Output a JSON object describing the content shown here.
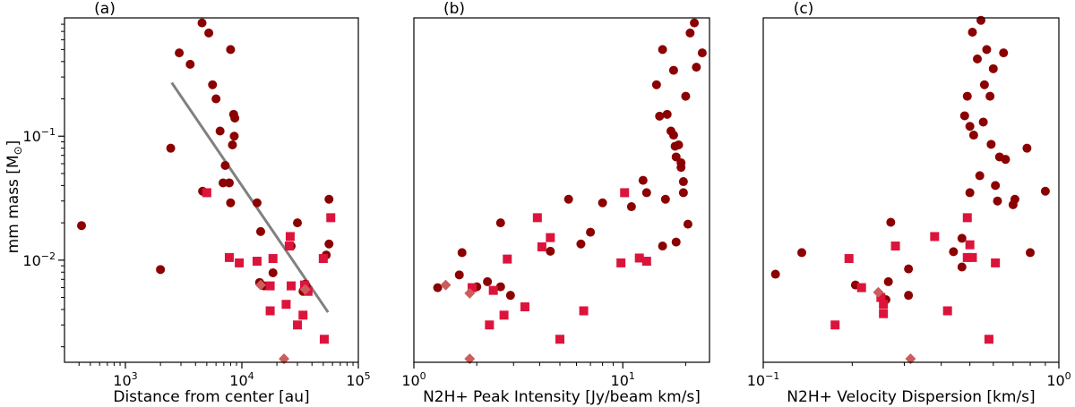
{
  "colors": {
    "dark_series": "#8b0000",
    "square_series": "#dc143c",
    "diamond_series": "#cd5c5c",
    "fit_line": "#808080"
  },
  "shared": {
    "ylabel": "mm mass [M",
    "ylabel_sub": "⊙",
    "ylabel_close": "]",
    "ylim": [
      0.0015,
      0.9
    ]
  },
  "chart_data": [
    {
      "type": "scatter",
      "panel_label": "(a)",
      "xlabel": "Distance from center [au]",
      "xscale": "log",
      "yscale": "log",
      "xlim": [
        300,
        100000
      ],
      "ylim": [
        0.0015,
        0.9
      ],
      "x_ticks": [
        {
          "value": 1000,
          "base": "10",
          "exp": "3"
        },
        {
          "value": 10000,
          "base": "10",
          "exp": "4"
        },
        {
          "value": 100000,
          "base": "10",
          "exp": "5"
        }
      ],
      "y_ticks": [
        {
          "value": 0.01,
          "base": "10",
          "exp": "−2"
        },
        {
          "value": 0.1,
          "base": "10",
          "exp": "−1"
        }
      ],
      "series": [
        {
          "name": "dark-circles",
          "marker": "circle",
          "color": "#8b0000",
          "points": [
            [
              420,
              0.019
            ],
            [
              2000,
              0.0084
            ],
            [
              2450,
              0.08
            ],
            [
              2900,
              0.47
            ],
            [
              3600,
              0.38
            ],
            [
              4550,
              0.82
            ],
            [
              5200,
              0.68
            ],
            [
              4600,
              0.036
            ],
            [
              5600,
              0.26
            ],
            [
              6000,
              0.2
            ],
            [
              6500,
              0.11
            ],
            [
              6900,
              0.042
            ],
            [
              7200,
              0.058
            ],
            [
              7800,
              0.042
            ],
            [
              8000,
              0.029
            ],
            [
              8000,
              0.5
            ],
            [
              8300,
              0.085
            ],
            [
              8500,
              0.15
            ],
            [
              8600,
              0.1
            ],
            [
              8700,
              0.14
            ],
            [
              13500,
              0.029
            ],
            [
              14200,
              0.0066
            ],
            [
              14500,
              0.017
            ],
            [
              15500,
              0.0062
            ],
            [
              18500,
              0.0079
            ],
            [
              26500,
              0.013
            ],
            [
              30000,
              0.02
            ],
            [
              33500,
              0.0056
            ],
            [
              35000,
              0.0064
            ],
            [
              36000,
              0.006
            ],
            [
              53000,
              0.011
            ],
            [
              56000,
              0.0135
            ],
            [
              56000,
              0.031
            ]
          ]
        },
        {
          "name": "red-squares",
          "marker": "square",
          "color": "#dc143c",
          "points": [
            [
              5000,
              0.035
            ],
            [
              7800,
              0.0105
            ],
            [
              9500,
              0.0095
            ],
            [
              13500,
              0.0098
            ],
            [
              17500,
              0.0062
            ],
            [
              17500,
              0.0039
            ],
            [
              18500,
              0.0103
            ],
            [
              24000,
              0.0044
            ],
            [
              25500,
              0.013
            ],
            [
              26000,
              0.0155
            ],
            [
              26500,
              0.0062
            ],
            [
              30000,
              0.003
            ],
            [
              33500,
              0.0036
            ],
            [
              34500,
              0.0063
            ],
            [
              37000,
              0.0056
            ],
            [
              50000,
              0.0103
            ],
            [
              51000,
              0.0023
            ],
            [
              58000,
              0.022
            ]
          ]
        },
        {
          "name": "diamonds",
          "marker": "diamond",
          "color": "#cd5c5c",
          "points": [
            [
              14500,
              0.0063
            ],
            [
              23000,
              0.0016
            ],
            [
              35000,
              0.0058
            ]
          ]
        }
      ],
      "fit_line": {
        "x": [
          2500,
          55000
        ],
        "y": [
          0.27,
          0.0038
        ]
      }
    },
    {
      "type": "scatter",
      "panel_label": "(b)",
      "xlabel": "N2H+ Peak Intensity [Jy/beam km/s]",
      "xscale": "log",
      "yscale": "log",
      "xlim": [
        1,
        26
      ],
      "ylim": [
        0.0015,
        0.9
      ],
      "x_ticks": [
        {
          "value": 1,
          "base": "10",
          "exp": "0"
        },
        {
          "value": 10,
          "base": "10",
          "exp": "1"
        }
      ],
      "y_ticks": [],
      "series": [
        {
          "name": "dark-circles",
          "marker": "circle",
          "color": "#8b0000",
          "points": [
            [
              1.3,
              0.006
            ],
            [
              1.65,
              0.0076
            ],
            [
              1.7,
              0.0115
            ],
            [
              2.0,
              0.0061
            ],
            [
              2.25,
              0.0067
            ],
            [
              2.6,
              0.02
            ],
            [
              2.6,
              0.0061
            ],
            [
              2.9,
              0.0052
            ],
            [
              4.5,
              0.0118
            ],
            [
              5.5,
              0.031
            ],
            [
              6.3,
              0.0135
            ],
            [
              7.0,
              0.0168
            ],
            [
              8.0,
              0.029
            ],
            [
              11.0,
              0.027
            ],
            [
              12.5,
              0.044
            ],
            [
              13.0,
              0.035
            ],
            [
              14.5,
              0.26
            ],
            [
              15.0,
              0.145
            ],
            [
              15.5,
              0.013
            ],
            [
              15.5,
              0.5
            ],
            [
              16.0,
              0.031
            ],
            [
              16.3,
              0.15
            ],
            [
              17.0,
              0.11
            ],
            [
              17.5,
              0.34
            ],
            [
              17.5,
              0.102
            ],
            [
              17.8,
              0.083
            ],
            [
              18.0,
              0.068
            ],
            [
              18.0,
              0.014
            ],
            [
              18.5,
              0.085
            ],
            [
              19.0,
              0.061
            ],
            [
              19.0,
              0.056
            ],
            [
              19.5,
              0.035
            ],
            [
              19.5,
              0.043
            ],
            [
              20.0,
              0.21
            ],
            [
              20.5,
              0.0195
            ],
            [
              21.0,
              0.68
            ],
            [
              22.0,
              0.82
            ],
            [
              22.5,
              0.36
            ],
            [
              24.0,
              0.47
            ]
          ]
        },
        {
          "name": "red-squares",
          "marker": "square",
          "color": "#dc143c",
          "points": [
            [
              1.9,
              0.006
            ],
            [
              2.3,
              0.003
            ],
            [
              2.4,
              0.0057
            ],
            [
              2.7,
              0.0036
            ],
            [
              2.8,
              0.0102
            ],
            [
              3.4,
              0.0042
            ],
            [
              3.9,
              0.022
            ],
            [
              4.1,
              0.0128
            ],
            [
              4.5,
              0.0152
            ],
            [
              5.0,
              0.0023
            ],
            [
              6.5,
              0.0039
            ],
            [
              9.8,
              0.0095
            ],
            [
              10.2,
              0.035
            ],
            [
              12.0,
              0.0104
            ],
            [
              13.0,
              0.0098
            ]
          ]
        },
        {
          "name": "diamonds",
          "marker": "diamond",
          "color": "#cd5c5c",
          "points": [
            [
              1.42,
              0.0063
            ],
            [
              1.85,
              0.0054
            ],
            [
              1.85,
              0.0016
            ]
          ]
        }
      ]
    },
    {
      "type": "scatter",
      "panel_label": "(c)",
      "xlabel": "N2H+ Velocity Dispersion [km/s]",
      "xscale": "log",
      "yscale": "log",
      "xlim": [
        0.1,
        1.0
      ],
      "ylim": [
        0.0015,
        0.9
      ],
      "x_ticks": [
        {
          "value": 0.1,
          "base": "10",
          "exp": "−1"
        },
        {
          "value": 1.0,
          "base": "10",
          "exp": "0"
        }
      ],
      "y_ticks": [],
      "series": [
        {
          "name": "dark-circles",
          "marker": "circle",
          "color": "#8b0000",
          "points": [
            [
              0.11,
              0.0077
            ],
            [
              0.135,
              0.0115
            ],
            [
              0.205,
              0.0063
            ],
            [
              0.26,
              0.0048
            ],
            [
              0.265,
              0.0067
            ],
            [
              0.27,
              0.0202
            ],
            [
              0.31,
              0.0085
            ],
            [
              0.31,
              0.0052
            ],
            [
              0.44,
              0.0117
            ],
            [
              0.47,
              0.015
            ],
            [
              0.47,
              0.0088
            ],
            [
              0.48,
              0.146
            ],
            [
              0.49,
              0.21
            ],
            [
              0.5,
              0.12
            ],
            [
              0.5,
              0.035
            ],
            [
              0.51,
              0.69
            ],
            [
              0.515,
              0.102
            ],
            [
              0.53,
              0.42
            ],
            [
              0.54,
              0.048
            ],
            [
              0.545,
              0.86
            ],
            [
              0.555,
              0.13
            ],
            [
              0.56,
              0.26
            ],
            [
              0.57,
              0.5
            ],
            [
              0.585,
              0.21
            ],
            [
              0.59,
              0.086
            ],
            [
              0.6,
              0.35
            ],
            [
              0.61,
              0.04
            ],
            [
              0.62,
              0.03
            ],
            [
              0.63,
              0.068
            ],
            [
              0.65,
              0.47
            ],
            [
              0.66,
              0.065
            ],
            [
              0.7,
              0.028
            ],
            [
              0.71,
              0.031
            ],
            [
              0.78,
              0.08
            ],
            [
              0.8,
              0.0115
            ],
            [
              0.9,
              0.036
            ]
          ]
        },
        {
          "name": "red-squares",
          "marker": "square",
          "color": "#dc143c",
          "points": [
            [
              0.175,
              0.003
            ],
            [
              0.195,
              0.0103
            ],
            [
              0.215,
              0.006
            ],
            [
              0.25,
              0.005
            ],
            [
              0.255,
              0.0044
            ],
            [
              0.255,
              0.0037
            ],
            [
              0.28,
              0.013
            ],
            [
              0.38,
              0.0155
            ],
            [
              0.42,
              0.0039
            ],
            [
              0.49,
              0.0105
            ],
            [
              0.49,
              0.022
            ],
            [
              0.5,
              0.0133
            ],
            [
              0.51,
              0.0105
            ],
            [
              0.58,
              0.0023
            ],
            [
              0.61,
              0.0095
            ]
          ]
        },
        {
          "name": "diamonds",
          "marker": "diamond",
          "color": "#cd5c5c",
          "points": [
            [
              0.245,
              0.0055
            ],
            [
              0.315,
              0.0016
            ]
          ]
        }
      ]
    }
  ]
}
